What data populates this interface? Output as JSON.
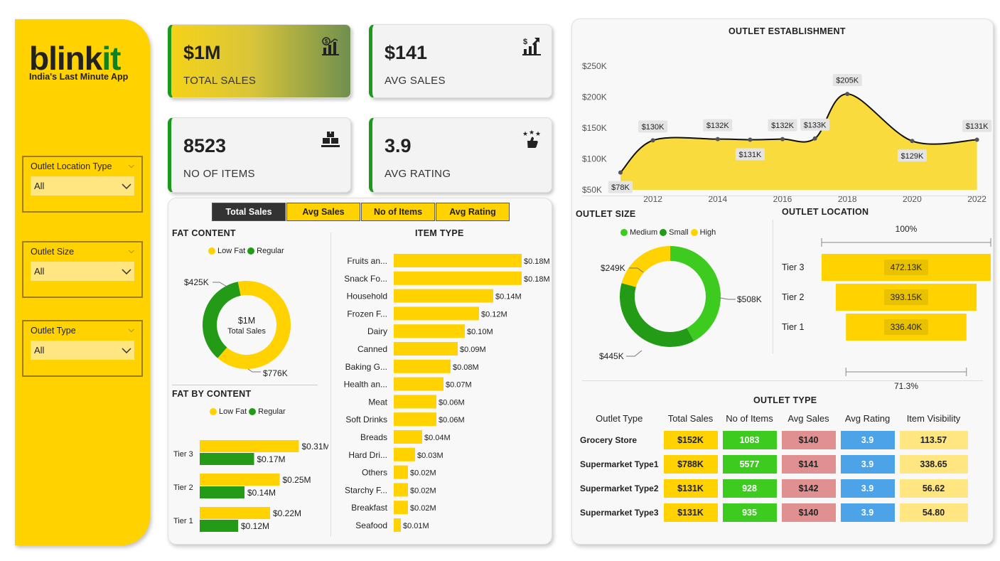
{
  "brand": {
    "logo_main": "blink",
    "logo_accent": "it",
    "tagline": "India's Last Minute App"
  },
  "filters": [
    {
      "label": "Outlet Location Type",
      "value": "All"
    },
    {
      "label": "Outlet Size",
      "value": "All"
    },
    {
      "label": "Outlet Type",
      "value": "All"
    }
  ],
  "kpis": [
    {
      "value": "$1M",
      "name": "TOTAL SALES",
      "icon": "sales-chart-icon"
    },
    {
      "value": "$141",
      "name": "AVG SALES",
      "icon": "dollar-growth-icon"
    },
    {
      "value": "8523",
      "name": "NO OF ITEMS",
      "icon": "boxes-icon"
    },
    {
      "value": "3.9",
      "name": "AVG RATING",
      "icon": "thumbs-up-stars-icon"
    }
  ],
  "tabs": [
    "Total Sales",
    "Avg Sales",
    "No of Items",
    "Avg Rating"
  ],
  "active_tab": "Total Sales",
  "fat_content": {
    "title": "FAT CONTENT",
    "legend": [
      "Low Fat",
      "Regular"
    ],
    "center_value": "$1M",
    "center_label": "Total Sales",
    "chart_data": {
      "type": "pie",
      "labels": [
        "Low Fat",
        "Regular"
      ],
      "values": [
        776,
        425
      ],
      "display": [
        "$776K",
        "$425K"
      ],
      "colors": [
        "#FFD200",
        "#239B16"
      ]
    }
  },
  "fat_by_content": {
    "title": "FAT BY CONTENT",
    "legend": [
      "Low Fat",
      "Regular"
    ],
    "chart_data": {
      "type": "bar",
      "categories": [
        "Tier 3",
        "Tier 2",
        "Tier 1"
      ],
      "series": [
        {
          "name": "Low Fat",
          "values": [
            0.31,
            0.25,
            0.22
          ],
          "display": [
            "$0.31M",
            "$0.25M",
            "$0.22M"
          ]
        },
        {
          "name": "Regular",
          "values": [
            0.17,
            0.14,
            0.12
          ],
          "display": [
            "$0.17M",
            "$0.14M",
            "$0.12M"
          ]
        }
      ]
    }
  },
  "item_type": {
    "title": "ITEM TYPE",
    "chart_data": {
      "type": "bar",
      "categories": [
        "Fruits an...",
        "Snack Fo...",
        "Household",
        "Frozen F...",
        "Dairy",
        "Canned",
        "Baking G...",
        "Health an...",
        "Meat",
        "Soft Drinks",
        "Breads",
        "Hard Dri...",
        "Others",
        "Starchy F...",
        "Breakfast",
        "Seafood"
      ],
      "values": [
        0.18,
        0.18,
        0.14,
        0.12,
        0.1,
        0.09,
        0.08,
        0.07,
        0.06,
        0.06,
        0.04,
        0.03,
        0.02,
        0.02,
        0.02,
        0.01
      ],
      "display": [
        "$0.18M",
        "$0.18M",
        "$0.14M",
        "$0.12M",
        "$0.10M",
        "$0.09M",
        "$0.08M",
        "$0.07M",
        "$0.06M",
        "$0.06M",
        "$0.04M",
        "$0.03M",
        "$0.02M",
        "$0.02M",
        "$0.02M",
        "$0.01M"
      ]
    }
  },
  "outlet_establishment": {
    "title": "OUTLET ESTABLISHMENT",
    "chart_data": {
      "type": "area",
      "x": [
        2011,
        2012,
        2014,
        2015,
        2016,
        2017,
        2018,
        2020,
        2022
      ],
      "y": [
        78,
        130,
        132,
        131,
        132,
        133,
        205,
        129,
        131
      ],
      "display": [
        "$78K",
        "$130K",
        "$132K",
        "$131K",
        "$132K",
        "$133K",
        "$205K",
        "$129K",
        "$131K"
      ],
      "label_side": [
        "below",
        "above",
        "above",
        "below",
        "above",
        "above",
        "above",
        "below",
        "above"
      ],
      "y_ticks": [
        "$50K",
        "$100K",
        "$150K",
        "$200K",
        "$250K"
      ],
      "x_ticks": [
        "2012",
        "2014",
        "2016",
        "2018",
        "2020",
        "2022"
      ],
      "ylim": [
        50,
        250
      ]
    }
  },
  "outlet_size": {
    "title": "OUTLET SIZE",
    "legend": [
      "Medium",
      "Small",
      "High"
    ],
    "chart_data": {
      "type": "pie",
      "labels": [
        "Medium",
        "Small",
        "High"
      ],
      "values": [
        508,
        445,
        249
      ],
      "display": [
        "$508K",
        "$445K",
        "$249K"
      ],
      "colors": [
        "#3CCB1E",
        "#239B16",
        "#FFD200"
      ]
    }
  },
  "outlet_location": {
    "title": "OUTLET LOCATION",
    "top_pct": "100%",
    "bottom_pct": "71.3%",
    "chart_data": {
      "type": "bar",
      "categories": [
        "Tier 3",
        "Tier 2",
        "Tier 1"
      ],
      "values": [
        472.13,
        393.15,
        336.4
      ],
      "display": [
        "472.13K",
        "393.15K",
        "336.40K"
      ]
    }
  },
  "outlet_type": {
    "title": "OUTLET TYPE",
    "headers": [
      "Outlet Type",
      "Total Sales",
      "No of Items",
      "Avg Sales",
      "Avg Rating",
      "Item Visibility"
    ],
    "rows": [
      [
        "Grocery Store",
        "$152K",
        "1083",
        "$140",
        "3.9",
        "113.57"
      ],
      [
        "Supermarket Type1",
        "$788K",
        "5577",
        "$141",
        "3.9",
        "338.65"
      ],
      [
        "Supermarket Type2",
        "$131K",
        "928",
        "$142",
        "3.9",
        "56.62"
      ],
      [
        "Supermarket Type3",
        "$131K",
        "935",
        "$140",
        "3.9",
        "54.80"
      ]
    ]
  },
  "colors": {
    "yellow": "#FFD200",
    "green": "#239B16",
    "light_green": "#3CCB1E",
    "red": "#E09090",
    "blue": "#4DA3E8",
    "pale": "#FFE680"
  }
}
